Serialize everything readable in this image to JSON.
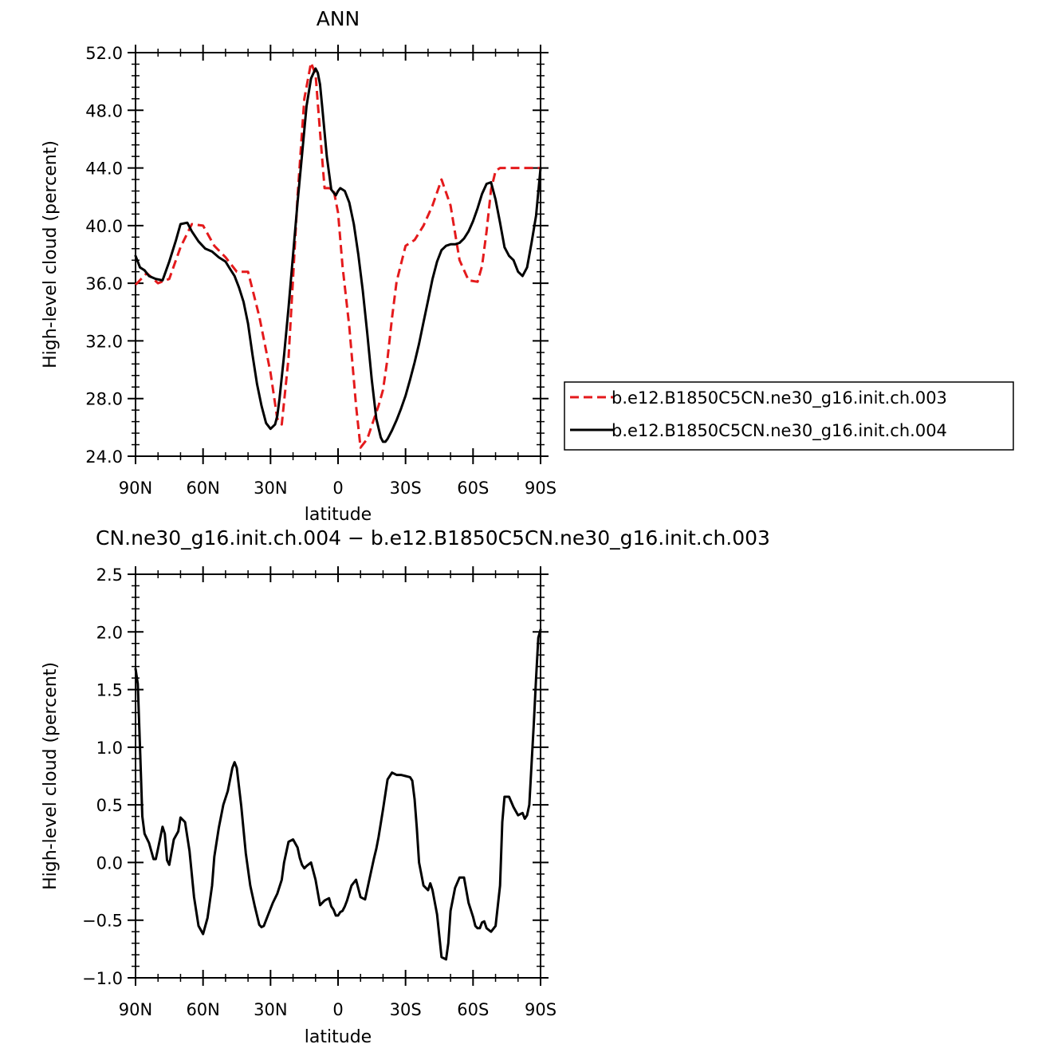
{
  "chart_data": [
    {
      "type": "line",
      "title": "ANN",
      "xlabel": "latitude",
      "ylabel": "High-level cloud (percent)",
      "xlim": [
        90,
        -90
      ],
      "ylim": [
        24,
        52
      ],
      "x_ticks": [
        90,
        60,
        30,
        0,
        -30,
        -60,
        -90
      ],
      "x_tick_labels": [
        "90N",
        "60N",
        "30N",
        "0",
        "30S",
        "60S",
        "90S"
      ],
      "y_ticks": [
        24,
        28,
        32,
        36,
        40,
        44,
        48,
        52
      ],
      "y_tick_labels": [
        "24.0",
        "28.0",
        "32.0",
        "36.0",
        "40.0",
        "44.0",
        "48.0",
        "52.0"
      ],
      "grid": false,
      "legend_position": "right",
      "colors": {
        "series_0": "#e41a1c",
        "series_1": "#000000"
      },
      "series": [
        {
          "name": "b.e12.B1850C5CN.ne30_g16.init.ch.003",
          "style": "dashed",
          "x": [
            90,
            85,
            80,
            75,
            70,
            65,
            60,
            55,
            50,
            45,
            40,
            35,
            30,
            27,
            25,
            22,
            20,
            18,
            15,
            12,
            10,
            8,
            6,
            4,
            2,
            0,
            -2,
            -5,
            -8,
            -10,
            -13,
            -16,
            -18,
            -20,
            -22,
            -24,
            -26,
            -30,
            -34,
            -38,
            -42,
            -46,
            -50,
            -54,
            -58,
            -62,
            -64,
            -66,
            -68,
            -70,
            -72,
            -74,
            -76,
            -78,
            -80,
            -82,
            -84,
            -86,
            -88,
            -90
          ],
          "values": [
            35.9,
            36.7,
            36.0,
            36.3,
            38.5,
            40.1,
            40.0,
            38.6,
            37.8,
            36.8,
            36.8,
            33.7,
            29.8,
            26.6,
            26.2,
            30.8,
            36.4,
            42.0,
            48.8,
            51.3,
            50.5,
            46.5,
            42.6,
            42.6,
            42.5,
            40.9,
            37.2,
            33.0,
            27.5,
            24.6,
            25.2,
            26.6,
            27.5,
            28.6,
            30.8,
            33.6,
            36.1,
            38.6,
            39.0,
            40.0,
            41.4,
            43.2,
            41.4,
            37.6,
            36.2,
            36.1,
            37.2,
            39.6,
            42.5,
            43.8,
            44.0,
            44.0,
            44.0,
            44.0,
            44.0,
            44.0,
            44.0,
            44.0,
            44.0,
            44.0
          ]
        },
        {
          "name": "b.e12.B1850C5CN.ne30_g16.init.ch.004",
          "style": "solid",
          "x": [
            90,
            88,
            86,
            84,
            81,
            78,
            75,
            72,
            70,
            67,
            65,
            62,
            59,
            56,
            53,
            50,
            48,
            46,
            44,
            42,
            40,
            38,
            36,
            34,
            32,
            30,
            28,
            27,
            26,
            24,
            22,
            20,
            18,
            16,
            14,
            12,
            10,
            9,
            8,
            7,
            5,
            3,
            1,
            0,
            -1,
            -3,
            -5,
            -7,
            -9,
            -11,
            -13,
            -15,
            -17,
            -19,
            -20,
            -21,
            -22,
            -23,
            -24,
            -26,
            -28,
            -30,
            -32,
            -34,
            -36,
            -38,
            -40,
            -42,
            -44,
            -46,
            -48,
            -50,
            -52,
            -54,
            -56,
            -58,
            -60,
            -62,
            -64,
            -66,
            -68,
            -70,
            -72,
            -74,
            -76,
            -78,
            -80,
            -82,
            -84,
            -86,
            -88,
            -90
          ],
          "values": [
            37.9,
            37.1,
            36.9,
            36.5,
            36.3,
            36.2,
            37.5,
            39.0,
            40.1,
            40.2,
            39.6,
            38.9,
            38.4,
            38.2,
            37.8,
            37.5,
            37.0,
            36.5,
            35.7,
            34.7,
            33.2,
            31.0,
            29.0,
            27.5,
            26.3,
            25.9,
            26.2,
            26.8,
            28.0,
            31.0,
            34.3,
            38.0,
            41.6,
            44.9,
            48.3,
            50.2,
            50.9,
            50.6,
            49.8,
            48.2,
            44.8,
            42.5,
            42.1,
            42.4,
            42.6,
            42.4,
            41.6,
            40.1,
            38.0,
            35.5,
            32.5,
            29.3,
            26.6,
            25.3,
            25.0,
            25.0,
            25.2,
            25.5,
            25.8,
            26.5,
            27.3,
            28.2,
            29.3,
            30.5,
            31.8,
            33.3,
            34.8,
            36.3,
            37.5,
            38.3,
            38.6,
            38.7,
            38.7,
            38.8,
            39.1,
            39.6,
            40.3,
            41.2,
            42.2,
            42.9,
            43.0,
            41.8,
            40.2,
            38.5,
            37.9,
            37.6,
            36.8,
            36.5,
            37.1,
            38.8,
            40.7,
            44.0
          ]
        }
      ]
    },
    {
      "type": "line",
      "title": "CN.ne30_g16.init.ch.004 − b.e12.B1850C5CN.ne30_g16.init.ch.003",
      "xlabel": "latitude",
      "ylabel": "High-level cloud (percent)",
      "xlim": [
        90,
        -90
      ],
      "ylim": [
        -1.0,
        2.5
      ],
      "x_ticks": [
        90,
        60,
        30,
        0,
        -30,
        -60,
        -90
      ],
      "x_tick_labels": [
        "90N",
        "60N",
        "30N",
        "0",
        "30S",
        "60S",
        "90S"
      ],
      "y_ticks": [
        -1.0,
        -0.5,
        0.0,
        0.5,
        1.0,
        1.5,
        2.0,
        2.5
      ],
      "y_tick_labels": [
        "−1.0",
        "−0.5",
        "0.0",
        "0.5",
        "1.0",
        "1.5",
        "2.0",
        "2.5"
      ],
      "grid": false,
      "colors": {
        "series_0": "#000000"
      },
      "series": [
        {
          "x": [
            90,
            89,
            88,
            87,
            86,
            84,
            82,
            81,
            80,
            78,
            77,
            76,
            75,
            73,
            71,
            70,
            68,
            66,
            64,
            62,
            60,
            58,
            56,
            55,
            53,
            51,
            49,
            47,
            46,
            45,
            43,
            41,
            39,
            37,
            35,
            34,
            33,
            31,
            29,
            27,
            25,
            24,
            22,
            20,
            18,
            17,
            16,
            15,
            14,
            12,
            10,
            8,
            6,
            4,
            3,
            2,
            1,
            0,
            -1,
            -2,
            -3,
            -4,
            -6,
            -8,
            -10,
            -12,
            -14,
            -16,
            -17,
            -18,
            -20,
            -22,
            -24,
            -26,
            -28,
            -30,
            -32,
            -33,
            -34,
            -35,
            -36,
            -38,
            -40,
            -41,
            -42,
            -44,
            -46,
            -48,
            -49,
            -50,
            -52,
            -54,
            -56,
            -58,
            -60,
            -61,
            -62,
            -63,
            -64,
            -65,
            -66,
            -68,
            -70,
            -72,
            -73,
            -74,
            -76,
            -78,
            -80,
            -81,
            -82,
            -83,
            -84,
            -85,
            -86,
            -87,
            -88,
            -89,
            -90
          ],
          "values": [
            1.68,
            1.55,
            1.0,
            0.4,
            0.25,
            0.17,
            0.03,
            0.03,
            0.12,
            0.31,
            0.25,
            0.02,
            -0.02,
            0.2,
            0.27,
            0.39,
            0.35,
            0.1,
            -0.3,
            -0.55,
            -0.62,
            -0.48,
            -0.2,
            0.05,
            0.3,
            0.5,
            0.62,
            0.82,
            0.87,
            0.82,
            0.49,
            0.08,
            -0.2,
            -0.38,
            -0.54,
            -0.56,
            -0.55,
            -0.45,
            -0.35,
            -0.27,
            -0.15,
            0.0,
            0.18,
            0.2,
            0.13,
            0.04,
            -0.02,
            -0.05,
            -0.03,
            0.0,
            -0.15,
            -0.37,
            -0.33,
            -0.31,
            -0.38,
            -0.41,
            -0.46,
            -0.46,
            -0.43,
            -0.42,
            -0.38,
            -0.33,
            -0.2,
            -0.15,
            -0.3,
            -0.32,
            -0.14,
            0.04,
            0.12,
            0.22,
            0.46,
            0.72,
            0.78,
            0.76,
            0.76,
            0.75,
            0.74,
            0.71,
            0.55,
            0.3,
            0.0,
            -0.2,
            -0.24,
            -0.18,
            -0.24,
            -0.45,
            -0.82,
            -0.84,
            -0.7,
            -0.42,
            -0.22,
            -0.13,
            -0.13,
            -0.35,
            -0.47,
            -0.55,
            -0.57,
            -0.57,
            -0.52,
            -0.51,
            -0.57,
            -0.6,
            -0.55,
            -0.2,
            0.35,
            0.57,
            0.57,
            0.48,
            0.41,
            0.42,
            0.43,
            0.38,
            0.41,
            0.5,
            0.85,
            1.2,
            1.6,
            1.95,
            2.02
          ]
        }
      ]
    }
  ]
}
